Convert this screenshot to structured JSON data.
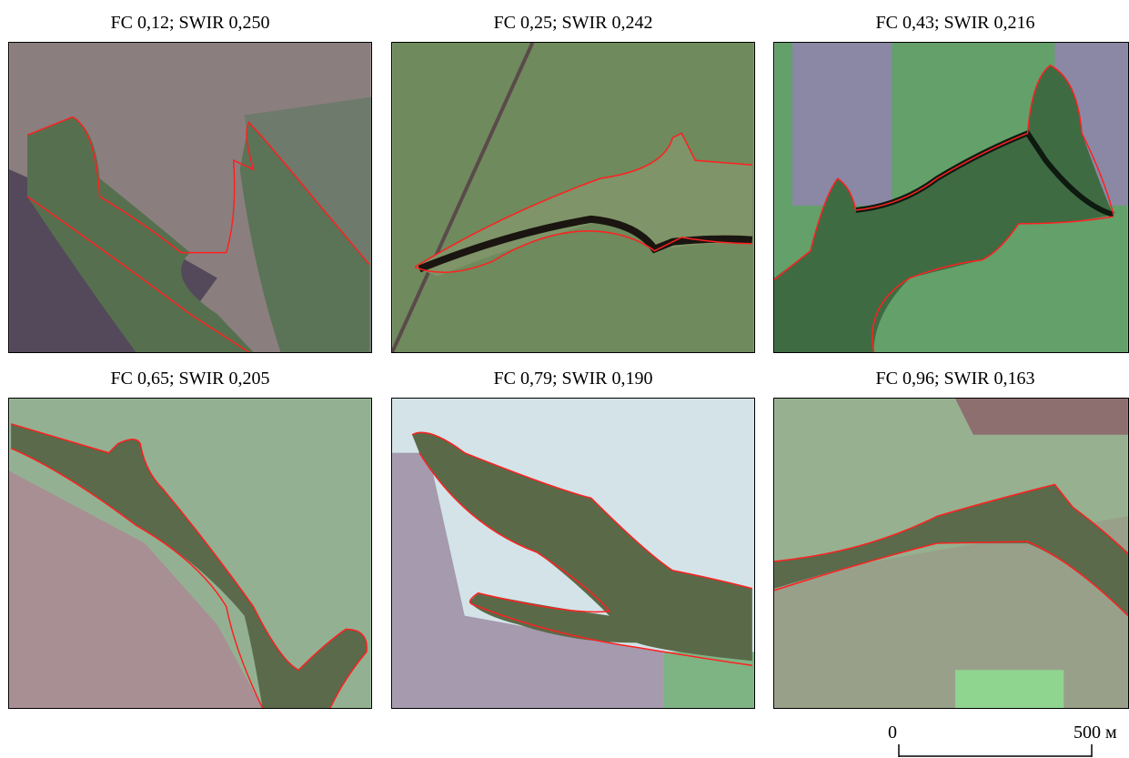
{
  "panels": [
    {
      "title": "FC 0,12; SWIR 0,250"
    },
    {
      "title": "FC 0,25; SWIR 0,242"
    },
    {
      "title": "FC 0,43; SWIR 0,216"
    },
    {
      "title": "FC 0,65; SWIR 0,205"
    },
    {
      "title": "FC 0,79; SWIR 0,190"
    },
    {
      "title": "FC 0,96; SWIR 0,163"
    }
  ],
  "scale_bar": {
    "start_label": "0",
    "end_label": "500 м"
  }
}
